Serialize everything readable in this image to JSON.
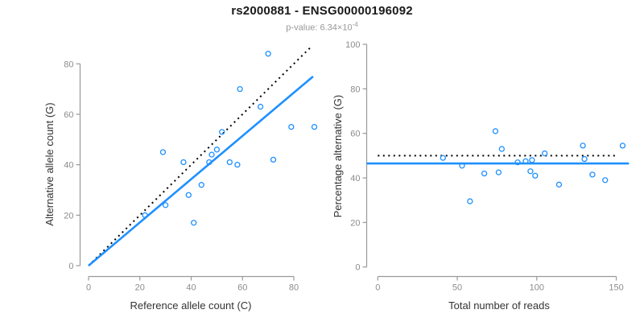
{
  "header": {
    "title": "rs2000881 - ENSG00000196092",
    "pvalue_prefix": "p-value: 6.34×10",
    "pvalue_exponent": "-4"
  },
  "colors": {
    "accent": "#1E90FF",
    "dotted_line": "#000000",
    "axis": "#999999",
    "tick_label": "#8c8c8c",
    "axis_label": "#333333",
    "title": "#1a1a1a",
    "subtitle": "#999999"
  },
  "chart_data": [
    {
      "type": "scatter",
      "xlabel": "Reference allele count (C)",
      "ylabel": "Alternative allele count (G)",
      "xticks": [
        0,
        20,
        40,
        60,
        80
      ],
      "yticks": [
        0,
        20,
        40,
        60,
        80
      ],
      "xlim": [
        0,
        88
      ],
      "ylim": [
        0,
        88
      ],
      "grid": false,
      "points": [
        [
          22,
          20
        ],
        [
          29,
          45
        ],
        [
          30,
          24
        ],
        [
          37,
          41
        ],
        [
          39,
          28
        ],
        [
          41,
          17
        ],
        [
          44,
          32
        ],
        [
          47,
          41
        ],
        [
          48,
          44
        ],
        [
          50,
          46
        ],
        [
          52,
          53
        ],
        [
          55,
          41
        ],
        [
          58,
          40
        ],
        [
          59,
          70
        ],
        [
          67,
          63
        ],
        [
          70,
          84
        ],
        [
          72,
          42
        ],
        [
          79,
          55
        ],
        [
          88,
          55
        ]
      ],
      "lines": [
        {
          "name": "identity-line",
          "style": "dotted",
          "color": "dotted_line",
          "x1": 0,
          "y1": 0,
          "x2": 87,
          "y2": 87
        },
        {
          "name": "fit-line",
          "style": "solid",
          "color": "accent",
          "x1": 0,
          "y1": 0,
          "x2": 87.5,
          "y2": 75
        }
      ]
    },
    {
      "type": "scatter",
      "xlabel": "Total number of reads",
      "ylabel": "Percentage alternative (G)",
      "xticks": [
        0,
        50,
        100,
        150
      ],
      "yticks": [
        0,
        20,
        40,
        60,
        80,
        100
      ],
      "xlim": [
        0,
        158
      ],
      "ylim": [
        0,
        100
      ],
      "grid": false,
      "points": [
        [
          41,
          49
        ],
        [
          53,
          45.5
        ],
        [
          58,
          29.5
        ],
        [
          67,
          42
        ],
        [
          74,
          61
        ],
        [
          76,
          42.5
        ],
        [
          78,
          53
        ],
        [
          88,
          47
        ],
        [
          93,
          47.5
        ],
        [
          96,
          43
        ],
        [
          97,
          48
        ],
        [
          99,
          41
        ],
        [
          105,
          51
        ],
        [
          114,
          37
        ],
        [
          129,
          54.5
        ],
        [
          130,
          48.5
        ],
        [
          135,
          41.5
        ],
        [
          143,
          39
        ],
        [
          154,
          54.5
        ]
      ],
      "lines": [
        {
          "name": "expected-50pct-line",
          "style": "dotted",
          "color": "dotted_line",
          "x1": 0,
          "y1": 50,
          "x2": 151,
          "y2": 50
        },
        {
          "name": "mean-pct-line",
          "style": "solid",
          "color": "accent",
          "x1": -7,
          "y1": 46.5,
          "x2": 158,
          "y2": 46.5
        }
      ]
    }
  ]
}
